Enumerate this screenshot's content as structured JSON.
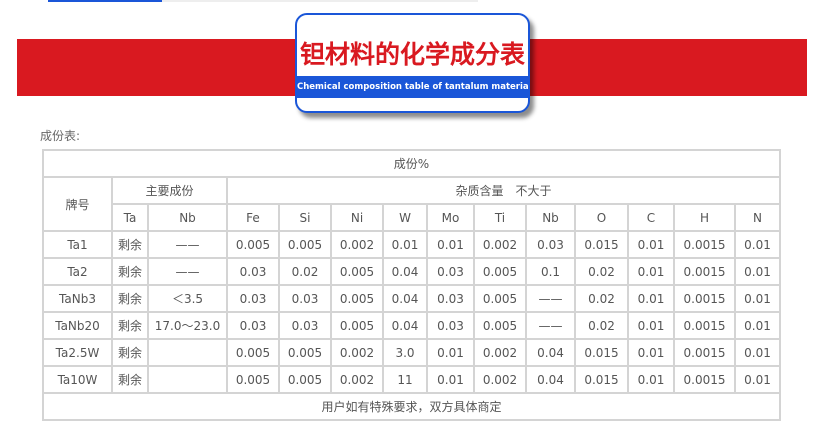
{
  "header": {
    "title": "钽材料的化学成分表",
    "subtitle": "Chemical composition table of tantalum material"
  },
  "caption": "成份表:",
  "table": {
    "top_header": "成份%",
    "grade_header": "牌号",
    "main_header": "主要成份",
    "impurity_header": "杂质含量　不大于",
    "columns": [
      "Ta",
      "Nb",
      "Fe",
      "Si",
      "Ni",
      "W",
      "Mo",
      "Ti",
      "Nb",
      "O",
      "C",
      "H",
      "N"
    ],
    "rows": [
      [
        "Ta1",
        "剩余",
        "——",
        "0.005",
        "0.005",
        "0.002",
        "0.01",
        "0.01",
        "0.002",
        "0.03",
        "0.015",
        "0.01",
        "0.0015",
        "0.01"
      ],
      [
        "Ta2",
        "剩余",
        "——",
        "0.03",
        "0.02",
        "0.005",
        "0.04",
        "0.03",
        "0.005",
        "0.1",
        "0.02",
        "0.01",
        "0.0015",
        "0.01"
      ],
      [
        "TaNb3",
        "剩余",
        "＜3.5",
        "0.03",
        "0.03",
        "0.005",
        "0.04",
        "0.03",
        "0.005",
        "——",
        "0.02",
        "0.01",
        "0.0015",
        "0.01"
      ],
      [
        "TaNb20",
        "剩余",
        "17.0～23.0",
        "0.03",
        "0.03",
        "0.005",
        "0.04",
        "0.03",
        "0.005",
        "——",
        "0.02",
        "0.01",
        "0.0015",
        "0.01"
      ],
      [
        "Ta2.5W",
        "剩余",
        "",
        "0.005",
        "0.005",
        "0.002",
        "3.0",
        "0.01",
        "0.002",
        "0.04",
        "0.015",
        "0.01",
        "0.0015",
        "0.01"
      ],
      [
        "Ta10W",
        "剩余",
        "",
        "0.005",
        "0.005",
        "0.002",
        "11",
        "0.01",
        "0.002",
        "0.04",
        "0.015",
        "0.01",
        "0.0015",
        "0.01"
      ]
    ],
    "footer": "用户如有特殊要求，双方具体商定"
  }
}
